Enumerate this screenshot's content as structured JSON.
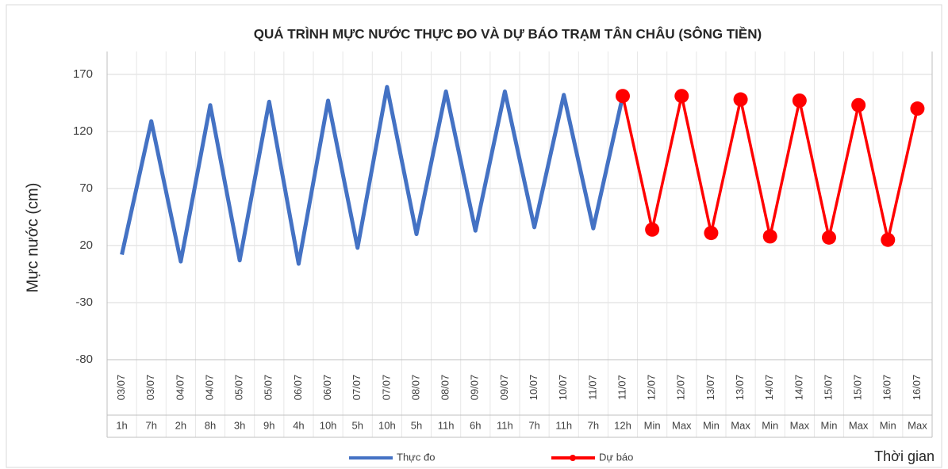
{
  "chart_data": {
    "type": "line",
    "title": "QUÁ TRÌNH MỰC NƯỚC THỰC ĐO VÀ DỰ BÁO TRẠM TÂN CHÂU (SÔNG TIỀN)",
    "y_label": "Mực nước (cm)",
    "x_label": "Thời gian",
    "categories": [
      [
        "03/07",
        "1h"
      ],
      [
        "03/07",
        "7h"
      ],
      [
        "04/07",
        "2h"
      ],
      [
        "04/07",
        "8h"
      ],
      [
        "05/07",
        "3h"
      ],
      [
        "05/07",
        "9h"
      ],
      [
        "06/07",
        "4h"
      ],
      [
        "06/07",
        "10h"
      ],
      [
        "07/07",
        "5h"
      ],
      [
        "07/07",
        "10h"
      ],
      [
        "08/07",
        "5h"
      ],
      [
        "08/07",
        "11h"
      ],
      [
        "09/07",
        "6h"
      ],
      [
        "09/07",
        "11h"
      ],
      [
        "10/07",
        "7h"
      ],
      [
        "10/07",
        "11h"
      ],
      [
        "11/07",
        "7h"
      ],
      [
        "11/07",
        "12h"
      ],
      [
        "12/07",
        "Min"
      ],
      [
        "12/07",
        "Max"
      ],
      [
        "13/07",
        "Min"
      ],
      [
        "13/07",
        "Max"
      ],
      [
        "14/07",
        "Min"
      ],
      [
        "14/07",
        "Max"
      ],
      [
        "15/07",
        "Min"
      ],
      [
        "15/07",
        "Max"
      ],
      [
        "16/07",
        "Min"
      ],
      [
        "16/07",
        "Max"
      ]
    ],
    "series": [
      {
        "name": "Thực đo",
        "color": "#4472c4",
        "markers": false,
        "values": [
          12,
          129,
          6,
          143,
          7,
          146,
          4,
          147,
          18,
          159,
          30,
          155,
          33,
          155,
          36,
          152,
          35,
          151,
          null,
          null,
          null,
          null,
          null,
          null,
          null,
          null,
          null,
          null
        ]
      },
      {
        "name": "Dự báo",
        "color": "#ff0000",
        "markers": true,
        "values": [
          null,
          null,
          null,
          null,
          null,
          null,
          null,
          null,
          null,
          null,
          null,
          null,
          null,
          null,
          null,
          null,
          null,
          151,
          34,
          151,
          31,
          148,
          28,
          147,
          27,
          143,
          25,
          140
        ]
      }
    ],
    "ylim": [
      -80,
      190
    ],
    "yticks": [
      -80,
      -30,
      20,
      70,
      120,
      170
    ],
    "grid": true,
    "legend": "bottom"
  }
}
